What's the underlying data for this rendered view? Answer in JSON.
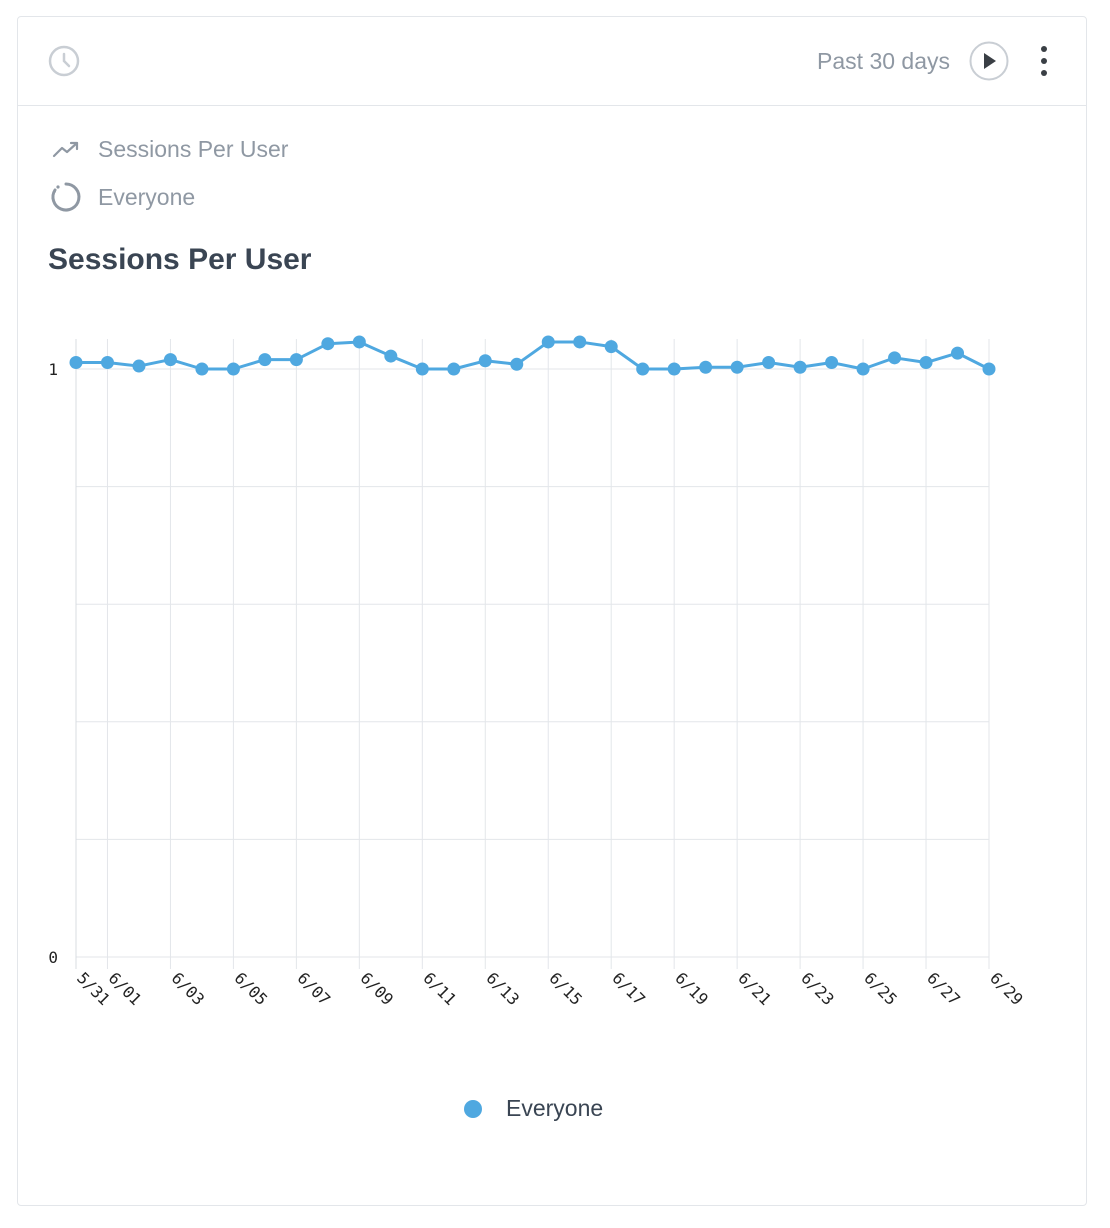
{
  "header": {
    "time_range": "Past 30 days",
    "icons": {
      "clock": "clock-icon",
      "play": "play-icon",
      "more": "more-vertical-icon"
    }
  },
  "meta": {
    "metric": "Sessions Per User",
    "segment": "Everyone",
    "icons": {
      "metric": "trend-line-icon",
      "segment": "segment-circle-icon"
    }
  },
  "chart_title": "Sessions Per User",
  "legend": {
    "label": "Everyone",
    "color": "#4fa8e0"
  },
  "chart_data": {
    "type": "line",
    "title": "Sessions Per User",
    "x": [
      "5/31",
      "6/01",
      "6/02",
      "6/03",
      "6/04",
      "6/05",
      "6/06",
      "6/07",
      "6/08",
      "6/09",
      "6/10",
      "6/11",
      "6/12",
      "6/13",
      "6/14",
      "6/15",
      "6/16",
      "6/17",
      "6/18",
      "6/19",
      "6/20",
      "6/21",
      "6/22",
      "6/23",
      "6/24",
      "6/25",
      "6/26",
      "6/27",
      "6/28",
      "6/29"
    ],
    "x_tick_labels": [
      "5/31",
      "6/01",
      "6/03",
      "6/05",
      "6/07",
      "6/09",
      "6/11",
      "6/13",
      "6/15",
      "6/17",
      "6/19",
      "6/21",
      "6/23",
      "6/25",
      "6/27",
      "6/29"
    ],
    "series": [
      {
        "name": "Everyone",
        "color": "#4fa8e0",
        "values": [
          1.011,
          1.011,
          1.005,
          1.016,
          1.0,
          1.0,
          1.016,
          1.016,
          1.043,
          1.046,
          1.022,
          1.0,
          1.0,
          1.014,
          1.008,
          1.046,
          1.046,
          1.038,
          1.0,
          1.0,
          1.003,
          1.003,
          1.011,
          1.003,
          1.011,
          1.0,
          1.019,
          1.011,
          1.027,
          1.0
        ]
      }
    ],
    "ylim": [
      0,
      1
    ],
    "y_tick_labels": [
      "0",
      "1"
    ],
    "grid": true,
    "legend_position": "bottom-center"
  }
}
